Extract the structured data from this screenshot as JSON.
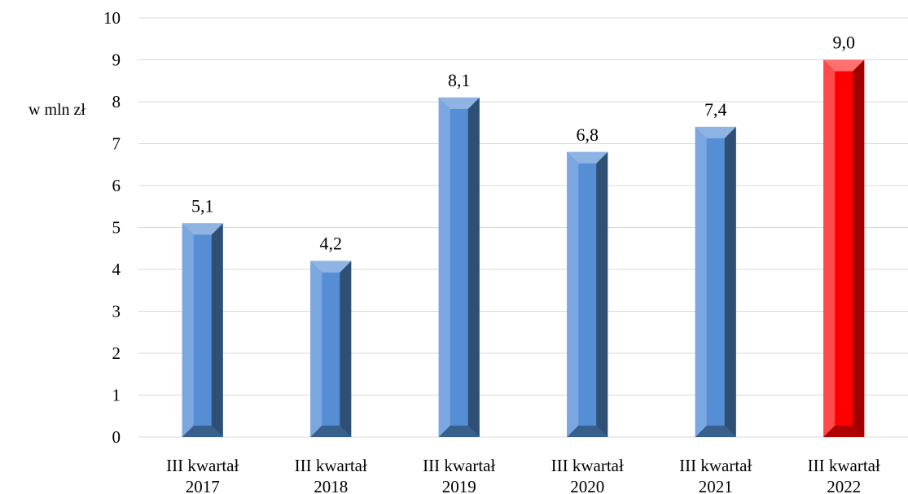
{
  "chart_data": {
    "type": "bar",
    "ylabel": "w mln zł",
    "xlabel": "",
    "title": "",
    "categories": [
      [
        "III kwartał",
        "2017"
      ],
      [
        "III kwartał",
        "2018"
      ],
      [
        "III kwartał",
        "2019"
      ],
      [
        "III kwartał",
        "2020"
      ],
      [
        "III kwartał",
        "2021"
      ],
      [
        "III kwartał",
        "2022"
      ]
    ],
    "values": [
      5.1,
      4.2,
      8.1,
      6.8,
      7.4,
      9.0
    ],
    "data_labels": [
      "5,1",
      "4,2",
      "8,1",
      "6,8",
      "7,4",
      "9,0"
    ],
    "ylim": [
      0,
      10
    ],
    "yticks": [
      0,
      1,
      2,
      3,
      4,
      5,
      6,
      7,
      8,
      9,
      10
    ],
    "grid": true,
    "colors": {
      "default_bar": "#4f81bd",
      "highlight_bar": "#ff0000"
    },
    "highlight_index": 5
  }
}
